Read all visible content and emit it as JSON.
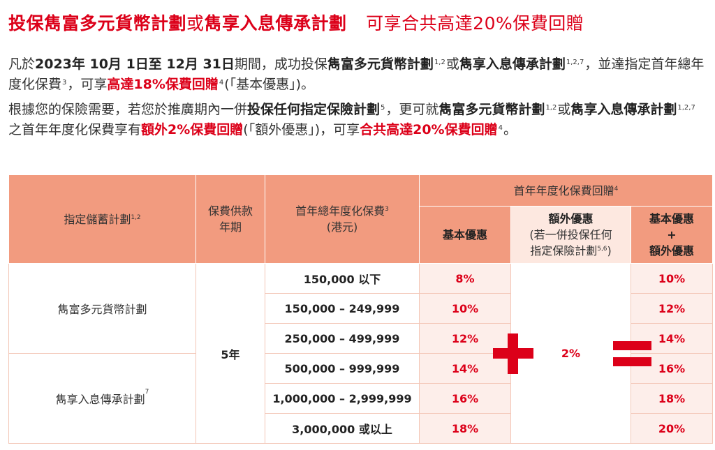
{
  "title": {
    "part1": "投保雋富多元貨幣計劃",
    "part2": "或",
    "part3": "雋享入息傳承計劃",
    "part4": "可享合共高達20%保費回贈"
  },
  "para1": {
    "t1": "凡於",
    "date": "2023年 10月 1日至 12月 31日",
    "t2": "期間，成功投保",
    "plan1": "雋富多元貨幣計劃",
    "sup1": "1,2",
    "t3": "或",
    "plan2": "雋享入息傳承計劃",
    "sup2": "1,2,7",
    "t4": "，並達指定首年總年度化保費",
    "sup3": "3",
    "t5": "，可享",
    "rebate": "高達18%保費回贈",
    "sup4": "4",
    "t6": "(「基本優惠」)。"
  },
  "para2": {
    "t1": "根據您的保險需要，若您於推廣期內一併",
    "bold1": "投保任何指定保險計劃",
    "sup1": "5",
    "t2": "，更可就",
    "plan1": "雋富多元貨幣計劃",
    "sup2": "1,2",
    "t3": "或",
    "plan2": "雋享入息傳承計劃",
    "sup3": "1,2,7",
    "t4": "之首年年度化保費享有",
    "extra": "額外2%保費回贈",
    "t5": "(「額外優惠」)，可享",
    "total": "合共高達20%保費回贈",
    "sup4": "4",
    "t6": "。"
  },
  "table": {
    "headers": {
      "plan": "指定儲蓄計劃",
      "plan_sup": "1,2",
      "term_line1": "保費供款",
      "term_line2": "年期",
      "premium_line1": "首年總年度化保費",
      "premium_sup": "3",
      "premium_line2": "(港元)",
      "rebate_group": "首年年度化保費回贈",
      "rebate_group_sup": "4",
      "basic": "基本優惠",
      "extra_line1": "額外優惠",
      "extra_line2": "(若一併投保任何",
      "extra_line3": "指定保險計劃",
      "extra_sup": "5,6",
      "extra_line3_end": ")",
      "total_line1": "基本優惠",
      "total_line2": "+",
      "total_line3": "額外優惠"
    },
    "plans": [
      {
        "name": "雋富多元貨幣計劃",
        "sup": ""
      },
      {
        "name": "雋享入息傳承計劃",
        "sup": "7"
      }
    ],
    "term": "5年",
    "extra_value": "2%",
    "rows": [
      {
        "range": "150,000 以下",
        "basic": "8%",
        "total": "10%"
      },
      {
        "range": "150,000 – 249,999",
        "basic": "10%",
        "total": "12%"
      },
      {
        "range": "250,000 – 499,999",
        "basic": "12%",
        "total": "14%"
      },
      {
        "range": "500,000 – 999,999",
        "basic": "14%",
        "total": "16%"
      },
      {
        "range": "1,000,000 – 2,999,999",
        "basic": "16%",
        "total": "18%"
      },
      {
        "range": "3,000,000 或以上",
        "basic": "18%",
        "total": "20%"
      }
    ]
  },
  "colors": {
    "brand_red": "#dc0019",
    "header_salmon": "#f29b7f",
    "header_pale": "#fde8e0"
  }
}
